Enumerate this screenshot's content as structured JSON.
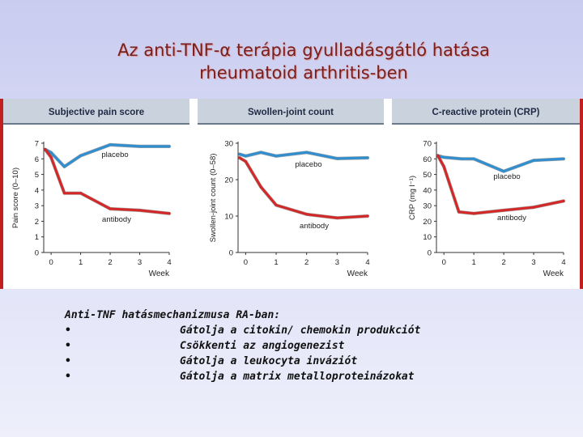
{
  "slide": {
    "title_line1": "Az anti-TNF-α terápia gyulladásgátló hatása",
    "title_line2": "rheumatoid arthritis-ben",
    "notes_heading": "Anti-TNF hatásmechanizmusa RA-ban:",
    "bullet_glyph": "•",
    "bullets": [
      "Gátolja a citokin/ chemokin produkciót",
      "Csökkenti az angiogenezist",
      "Gátolja a leukocyta inváziót",
      "Gátolja a matrix metalloproteinázokat"
    ]
  },
  "colors": {
    "placebo": "#2f8fd0",
    "antibody": "#d42828",
    "header_band": "#c9d2dd",
    "frame": "#c22020"
  },
  "chart_data": [
    {
      "type": "line",
      "title": "Subjective pain score",
      "ylabel": "Pain score (0–10)",
      "xlabel": "Week",
      "xticks": [
        "0",
        "1",
        "2",
        "3",
        "4"
      ],
      "yticks": [
        "0",
        "1",
        "2",
        "3",
        "4",
        "5",
        "6",
        "7"
      ],
      "ylim": [
        0,
        7
      ],
      "xlim": [
        -0.25,
        4
      ],
      "series": [
        {
          "name": "placebo",
          "x": [
            -0.2,
            0,
            0.45,
            1,
            2,
            3,
            4
          ],
          "y": [
            6.6,
            6.4,
            5.5,
            6.2,
            6.9,
            6.8,
            6.8
          ]
        },
        {
          "name": "antibody",
          "x": [
            -0.2,
            0,
            0.45,
            1,
            2,
            3,
            4
          ],
          "y": [
            6.6,
            6.1,
            3.8,
            3.8,
            2.8,
            2.7,
            2.5
          ]
        }
      ]
    },
    {
      "type": "line",
      "title": "Swollen-joint count",
      "ylabel": "Swollen-joint count (0–58)",
      "xlabel": "Week",
      "xticks": [
        "0",
        "1",
        "2",
        "3",
        "4"
      ],
      "yticks": [
        "0",
        "10",
        "20",
        "30"
      ],
      "ylim": [
        0,
        30
      ],
      "xlim": [
        -0.25,
        4
      ],
      "series": [
        {
          "name": "placebo",
          "x": [
            -0.2,
            0,
            0.5,
            1,
            2,
            3,
            4
          ],
          "y": [
            27,
            26.5,
            27.5,
            26.5,
            27.5,
            25.8,
            26
          ]
        },
        {
          "name": "antibody",
          "x": [
            -0.2,
            0,
            0.5,
            1,
            2,
            3,
            4
          ],
          "y": [
            26,
            25,
            18,
            13,
            10.5,
            9.5,
            10
          ]
        }
      ]
    },
    {
      "type": "line",
      "title": "C-reactive protein (CRP)",
      "ylabel": "CRP (mg l⁻¹)",
      "xlabel": "Week",
      "xticks": [
        "0",
        "1",
        "2",
        "3",
        "4"
      ],
      "yticks": [
        "0",
        "10",
        "20",
        "30",
        "40",
        "50",
        "60",
        "70"
      ],
      "ylim": [
        0,
        70
      ],
      "xlim": [
        -0.25,
        4
      ],
      "series": [
        {
          "name": "placebo",
          "x": [
            -0.2,
            0,
            0.6,
            1,
            2,
            3,
            4
          ],
          "y": [
            62,
            61,
            60,
            60,
            52,
            59,
            60
          ]
        },
        {
          "name": "antibody",
          "x": [
            -0.2,
            0,
            0.5,
            1,
            2,
            3,
            4
          ],
          "y": [
            62,
            55,
            26,
            25,
            27,
            29,
            33
          ]
        }
      ]
    }
  ]
}
